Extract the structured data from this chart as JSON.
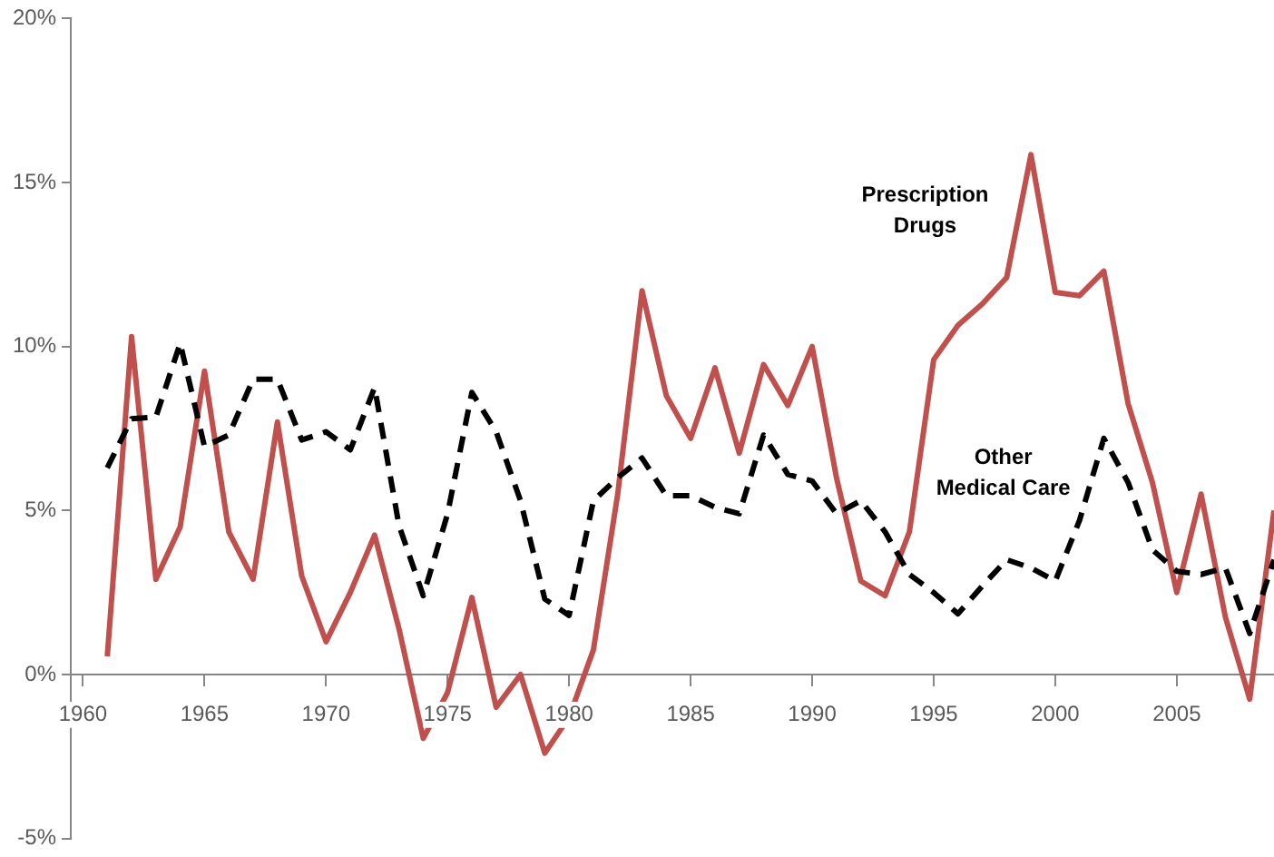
{
  "chart_data": {
    "type": "line",
    "x": [
      1961,
      1962,
      1963,
      1964,
      1965,
      1966,
      1967,
      1968,
      1969,
      1970,
      1971,
      1972,
      1973,
      1974,
      1975,
      1976,
      1977,
      1978,
      1979,
      1980,
      1981,
      1982,
      1983,
      1984,
      1985,
      1986,
      1987,
      1988,
      1989,
      1990,
      1991,
      1992,
      1993,
      1994,
      1995,
      1996,
      1997,
      1998,
      1999,
      2000,
      2001,
      2002,
      2003,
      2004,
      2005,
      2006,
      2007,
      2008,
      2009
    ],
    "series": [
      {
        "name": "Other Medical Care",
        "color": "#000000",
        "line_style": "dashed",
        "values": [
          6.3,
          7.8,
          7.85,
          10.1,
          6.95,
          7.3,
          9.0,
          9.0,
          7.15,
          7.4,
          6.85,
          8.75,
          4.55,
          2.4,
          4.9,
          8.6,
          7.4,
          5.3,
          2.3,
          1.8,
          5.3,
          6.0,
          6.6,
          5.45,
          5.45,
          5.1,
          4.9,
          7.3,
          6.1,
          5.9,
          4.9,
          5.3,
          4.35,
          3.05,
          2.5,
          1.85,
          2.7,
          3.5,
          3.25,
          2.85,
          4.7,
          7.2,
          5.85,
          3.8,
          3.15,
          3.05,
          3.25,
          1.25,
          3.5
        ]
      },
      {
        "name": "Prescription Drugs",
        "color": "#c0504d",
        "line_style": "solid",
        "values": [
          0.55,
          10.3,
          2.9,
          4.5,
          9.25,
          4.35,
          2.9,
          7.7,
          3.0,
          1.0,
          2.5,
          4.25,
          1.4,
          -1.95,
          -0.55,
          2.35,
          -1.0,
          0,
          -2.4,
          -1.3,
          0.75,
          5.5,
          11.7,
          8.5,
          7.2,
          9.35,
          6.75,
          9.45,
          8.2,
          10.0,
          6.0,
          2.85,
          2.4,
          4.35,
          9.6,
          10.65,
          11.3,
          12.1,
          15.85,
          11.65,
          11.55,
          12.3,
          8.25,
          5.85,
          2.5,
          5.5,
          1.75,
          -0.75,
          5.0
        ]
      }
    ],
    "xlim": [
      1959.5,
      2009
    ],
    "xticks": [
      1960,
      1965,
      1970,
      1975,
      1980,
      1985,
      1990,
      1995,
      2000,
      2005
    ],
    "ylim": [
      -5,
      20
    ],
    "yticks": [
      {
        "value": -5,
        "label": "-5%"
      },
      {
        "value": 0,
        "label": "0%"
      },
      {
        "value": 5,
        "label": "5%"
      },
      {
        "value": 10,
        "label": "10%"
      },
      {
        "value": 15,
        "label": "15%"
      },
      {
        "value": 20,
        "label": "20%"
      }
    ],
    "grid": false,
    "legend": false,
    "marker": "none"
  }
}
